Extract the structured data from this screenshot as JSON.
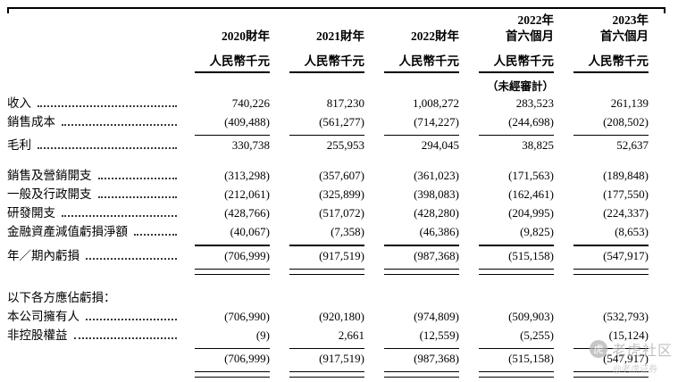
{
  "table": {
    "columns": [
      {
        "year": "2020財年",
        "unit": "人民幣千元",
        "note": ""
      },
      {
        "year": "2021財年",
        "unit": "人民幣千元",
        "note": ""
      },
      {
        "year": "2022財年",
        "unit": "人民幣千元",
        "note": ""
      },
      {
        "year": "2022年\n首六個月",
        "unit": "人民幣千元",
        "note": "（未經審計）"
      },
      {
        "year": "2023年\n首六個月",
        "unit": "人民幣千元",
        "note": ""
      }
    ],
    "rows": [
      {
        "label": "收入",
        "leader": true,
        "values": [
          "740,226",
          "817,230",
          "1,008,272",
          "283,523",
          "261,139"
        ]
      },
      {
        "label": "銷售成本",
        "leader": true,
        "values": [
          "(409,488)",
          "(561,277)",
          "(714,227)",
          "(244,698)",
          "(208,502)"
        ],
        "line_below": "single"
      },
      {
        "label": "毛利",
        "leader": true,
        "values": [
          "330,738",
          "255,953",
          "294,045",
          "38,825",
          "52,637"
        ],
        "gap_below": true
      },
      {
        "label": "銷售及營銷開支",
        "leader": true,
        "values": [
          "(313,298)",
          "(357,607)",
          "(361,023)",
          "(171,563)",
          "(189,848)"
        ]
      },
      {
        "label": "一般及行政開支",
        "leader": true,
        "values": [
          "(212,061)",
          "(325,899)",
          "(398,083)",
          "(162,461)",
          "(177,550)"
        ]
      },
      {
        "label": "研發開支",
        "leader": true,
        "values": [
          "(428,766)",
          "(517,072)",
          "(428,280)",
          "(204,995)",
          "(224,337)"
        ]
      },
      {
        "label": "金融資產減值虧損淨額",
        "leader": true,
        "values": [
          "(40,067)",
          "(7,358)",
          "(46,386)",
          "(9,825)",
          "(8,653)"
        ],
        "line_below": "single"
      },
      {
        "label": "年／期內虧損",
        "leader": true,
        "values": [
          "(706,999)",
          "(917,519)",
          "(987,368)",
          "(515,158)",
          "(547,917)"
        ],
        "line_below": "double"
      },
      {
        "label": "以下各方應佔虧損：",
        "leader": false,
        "section": true,
        "values": [
          "",
          "",
          "",
          "",
          ""
        ]
      },
      {
        "label": "本公司擁有人",
        "leader": true,
        "values": [
          "(706,990)",
          "(920,180)",
          "(974,809)",
          "(509,903)",
          "(532,793)"
        ]
      },
      {
        "label": "非控股權益",
        "leader": true,
        "values": [
          "(9)",
          "2,661",
          "(12,559)",
          "(5,255)",
          "(15,124)"
        ],
        "line_below": "single"
      },
      {
        "label": "",
        "leader": false,
        "values": [
          "(706,999)",
          "(917,519)",
          "(987,368)",
          "(515,158)",
          "(547,917)"
        ],
        "line_below": "double"
      }
    ]
  },
  "watermark": {
    "logo_glyph": "虎",
    "line1": "老虎社区",
    "line2": "@老虎证券"
  }
}
